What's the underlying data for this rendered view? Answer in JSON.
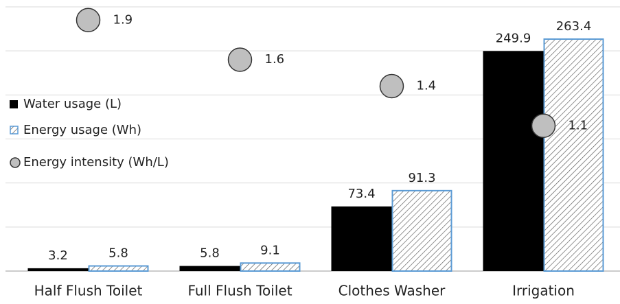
{
  "chart_data": {
    "type": "bar",
    "categories": [
      "Half Flush Toilet",
      "Full Flush Toilet",
      "Clothes Washer",
      "Irrigation"
    ],
    "series": [
      {
        "name": "Water usage (L)",
        "color": "#000000",
        "values": [
          3.2,
          5.8,
          73.4,
          249.9
        ]
      },
      {
        "name": "Energy usage (Wh)",
        "color": "#5b9bd5",
        "values": [
          5.8,
          9.1,
          91.3,
          263.4
        ]
      },
      {
        "name": "Energy intensity (Wh/L)",
        "color": "#bfbfbf",
        "type": "scatter",
        "axis": "y2",
        "values": [
          1.9,
          1.6,
          1.4,
          1.1
        ]
      }
    ],
    "ylim": [
      0,
      300
    ],
    "yticks": [
      0,
      50,
      100,
      150,
      200,
      250,
      300
    ],
    "y2lim": [
      0,
      2
    ],
    "grid": true,
    "legend": "left"
  }
}
